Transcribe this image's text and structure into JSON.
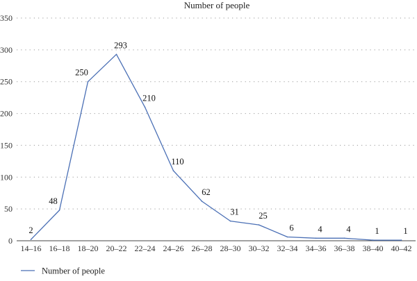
{
  "chart_data": {
    "type": "line",
    "title": "Number of people",
    "xlabel": "",
    "ylabel": "",
    "categories": [
      "14–16",
      "16–18",
      "18–20",
      "20–22",
      "22–24",
      "24–26",
      "26–28",
      "28–30",
      "30–32",
      "32–34",
      "34–36",
      "36–38",
      "38–40",
      "40–42"
    ],
    "series": [
      {
        "name": "Number of people",
        "values": [
          2,
          48,
          250,
          293,
          210,
          110,
          62,
          31,
          25,
          6,
          4,
          4,
          1,
          1
        ],
        "color": "#4a6fb5"
      }
    ],
    "ylim": [
      0,
      350
    ],
    "yticks": [
      0,
      50,
      100,
      150,
      200,
      250,
      300,
      350
    ],
    "grid": true,
    "legend": "bottom-left"
  }
}
